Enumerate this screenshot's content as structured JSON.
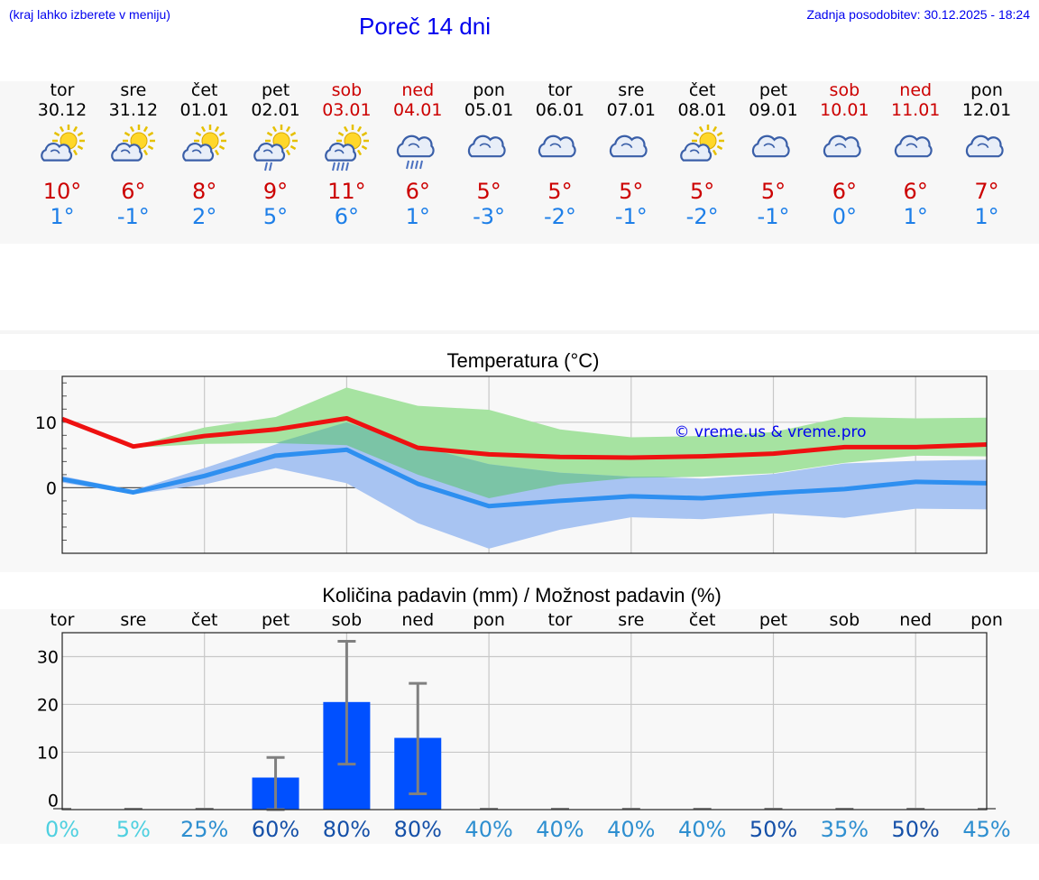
{
  "header": {
    "hint": "(kraj lahko izberete v meniju)",
    "title": "Poreč 14 dni",
    "updated": "Zadnja posodobitev: 30.12.2025 - 18:24"
  },
  "days": [
    {
      "name": "tor",
      "date": "30.12",
      "weekend": false,
      "icon": "sun-cloud-icon",
      "max": "10°",
      "min": "1°"
    },
    {
      "name": "sre",
      "date": "31.12",
      "weekend": false,
      "icon": "sun-cloud-icon",
      "max": "6°",
      "min": "-1°"
    },
    {
      "name": "čet",
      "date": "01.01",
      "weekend": false,
      "icon": "sun-cloud-icon",
      "max": "8°",
      "min": "2°"
    },
    {
      "name": "pet",
      "date": "02.01",
      "weekend": false,
      "icon": "sun-cloud-light-rain-icon",
      "max": "9°",
      "min": "5°"
    },
    {
      "name": "sob",
      "date": "03.01",
      "weekend": true,
      "icon": "sun-cloud-rain-icon",
      "max": "11°",
      "min": "6°"
    },
    {
      "name": "ned",
      "date": "04.01",
      "weekend": true,
      "icon": "cloud-rain-icon",
      "max": "6°",
      "min": "1°"
    },
    {
      "name": "pon",
      "date": "05.01",
      "weekend": false,
      "icon": "cloud-icon",
      "max": "5°",
      "min": "-3°"
    },
    {
      "name": "tor",
      "date": "06.01",
      "weekend": false,
      "icon": "cloud-icon",
      "max": "5°",
      "min": "-2°"
    },
    {
      "name": "sre",
      "date": "07.01",
      "weekend": false,
      "icon": "cloud-icon",
      "max": "5°",
      "min": "-1°"
    },
    {
      "name": "čet",
      "date": "08.01",
      "weekend": false,
      "icon": "sun-cloud-icon",
      "max": "5°",
      "min": "-2°"
    },
    {
      "name": "pet",
      "date": "09.01",
      "weekend": false,
      "icon": "cloud-icon",
      "max": "5°",
      "min": "-1°"
    },
    {
      "name": "sob",
      "date": "10.01",
      "weekend": true,
      "icon": "cloud-icon",
      "max": "6°",
      "min": "0°"
    },
    {
      "name": "ned",
      "date": "11.01",
      "weekend": true,
      "icon": "cloud-icon",
      "max": "6°",
      "min": "1°"
    },
    {
      "name": "pon",
      "date": "12.01",
      "weekend": false,
      "icon": "cloud-icon",
      "max": "7°",
      "min": "1°"
    }
  ],
  "colors": {
    "max_line": "#ee1111",
    "min_line": "#2e8ff0",
    "max_band": "#a6e3a1",
    "min_band": "#a8c4f2",
    "overlap_band": "#7bc4a6",
    "bar": "#0050ff",
    "error_bar": "#808080",
    "prob_low": "#4fd0e0",
    "prob_mid": "#2e8fd0",
    "prob_high": "#1550a8"
  },
  "chart_data": [
    {
      "type": "line",
      "title": "Temperatura (°C)",
      "watermark": "© vreme.us & vreme.pro",
      "ylim": [
        -10,
        17
      ],
      "yticks": [
        0,
        10
      ],
      "x": [
        0,
        1,
        2,
        3,
        4,
        5,
        6,
        7,
        8,
        9,
        10,
        11,
        12,
        13
      ],
      "series": [
        {
          "name": "max",
          "values": [
            10.5,
            6.3,
            7.9,
            8.9,
            10.6,
            6.1,
            5.1,
            4.7,
            4.6,
            4.8,
            5.2,
            6.2,
            6.2,
            6.6
          ]
        },
        {
          "name": "min",
          "values": [
            1.3,
            -0.7,
            1.8,
            4.9,
            5.8,
            0.6,
            -2.8,
            -2.0,
            -1.3,
            -1.6,
            -0.8,
            -0.2,
            0.9,
            0.7
          ]
        },
        {
          "name": "max_range_upper",
          "values": [
            10.6,
            6.4,
            9.2,
            10.8,
            15.3,
            12.5,
            11.9,
            8.9,
            7.7,
            7.9,
            8.5,
            10.8,
            10.6,
            10.7
          ]
        },
        {
          "name": "max_range_lower",
          "values": [
            10.4,
            6.1,
            6.7,
            6.8,
            6.5,
            2.0,
            -1.6,
            0.5,
            1.5,
            1.7,
            2.2,
            3.8,
            4.9,
            4.8
          ]
        },
        {
          "name": "min_range_upper",
          "values": [
            1.8,
            -0.4,
            3.0,
            6.6,
            10.0,
            6.4,
            3.6,
            2.3,
            1.7,
            1.4,
            2.1,
            3.7,
            4.1,
            4.3
          ]
        },
        {
          "name": "min_range_lower",
          "values": [
            0.8,
            -1.0,
            0.5,
            3.0,
            0.7,
            -5.4,
            -9.3,
            -6.4,
            -4.5,
            -4.8,
            -3.9,
            -4.6,
            -3.2,
            -3.3
          ]
        }
      ]
    },
    {
      "type": "bar",
      "title": "Količina padavin (mm) / Možnost padavin (%)",
      "categories": [
        "tor",
        "sre",
        "čet",
        "pet",
        "sob",
        "ned",
        "pon",
        "tor",
        "sre",
        "čet",
        "pet",
        "sob",
        "ned",
        "pon"
      ],
      "ylim": [
        -2,
        35
      ],
      "yticks": [
        0,
        10,
        20,
        30
      ],
      "values": [
        0,
        0,
        0,
        4.7,
        20.5,
        13.0,
        0,
        0,
        0,
        0,
        0,
        0,
        0,
        0
      ],
      "error_low": [
        0,
        0,
        0,
        0,
        7.5,
        1.3,
        0,
        0,
        0,
        0,
        0,
        0,
        0,
        0
      ],
      "error_high": [
        0,
        0,
        0,
        8.9,
        33.2,
        24.4,
        0,
        0,
        0,
        0,
        0,
        0,
        0,
        0
      ],
      "probability": [
        "0%",
        "5%",
        "25%",
        "60%",
        "80%",
        "80%",
        "40%",
        "40%",
        "40%",
        "40%",
        "50%",
        "35%",
        "50%",
        "45%"
      ]
    }
  ]
}
